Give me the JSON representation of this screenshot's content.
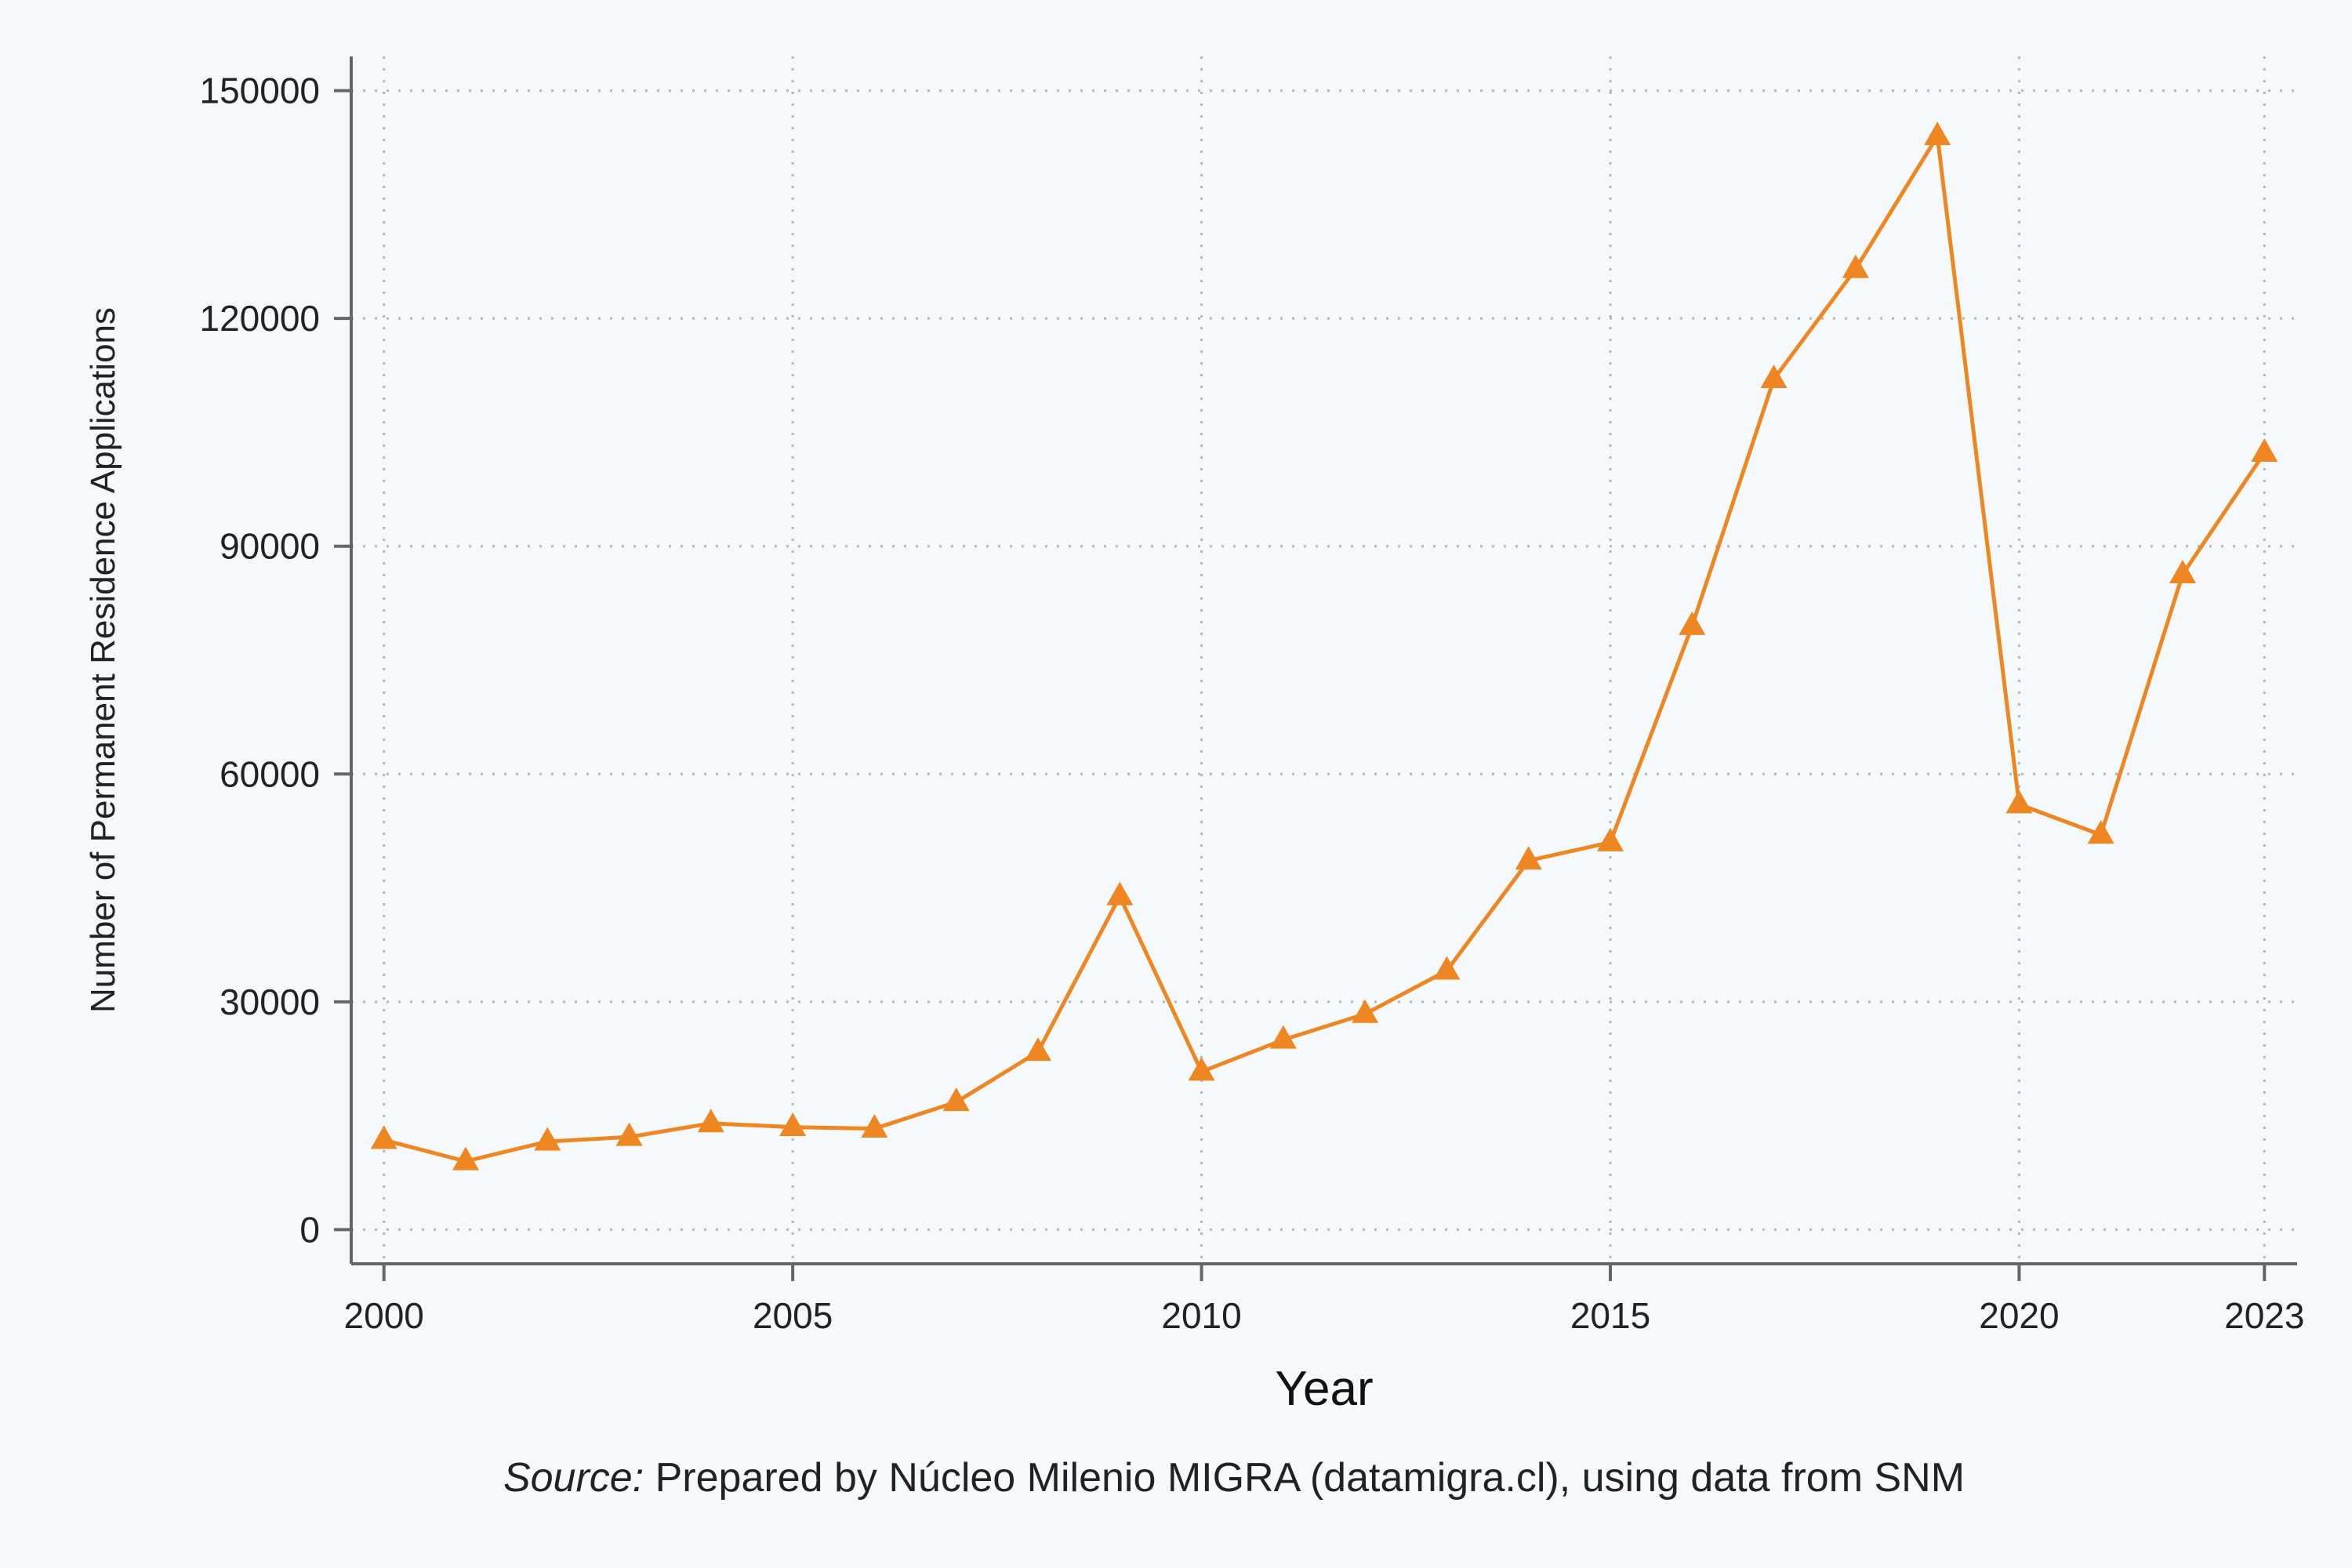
{
  "chart_data": {
    "type": "line",
    "title": "",
    "xlabel": "Year",
    "ylabel": "Number of Permanent Residence Applications",
    "x": [
      2000,
      2001,
      2002,
      2003,
      2004,
      2005,
      2006,
      2007,
      2008,
      2009,
      2010,
      2011,
      2012,
      2013,
      2014,
      2015,
      2016,
      2017,
      2018,
      2019,
      2020,
      2021,
      2022,
      2023
    ],
    "series": [
      {
        "name": "",
        "color": "#ee8722",
        "marker": "triangle",
        "values": [
          11800,
          9000,
          11600,
          12200,
          14000,
          13500,
          13300,
          16800,
          23400,
          43900,
          20800,
          25000,
          28400,
          34100,
          48600,
          51000,
          79500,
          112000,
          126500,
          144000,
          56000,
          52000,
          86300,
          102300
        ]
      }
    ],
    "xlim": [
      1999.6,
      2023.4
    ],
    "ylim": [
      -4500,
      154500
    ],
    "xticks": [
      2000,
      2005,
      2010,
      2015,
      2020,
      2023
    ],
    "yticks": [
      0,
      30000,
      60000,
      90000,
      120000,
      150000
    ],
    "grid": true,
    "legend": "none"
  },
  "source": {
    "label": "Source:",
    "text": " Prepared by Núcleo Milenio MIGRA (datamigra.cl), using data from SNM"
  }
}
